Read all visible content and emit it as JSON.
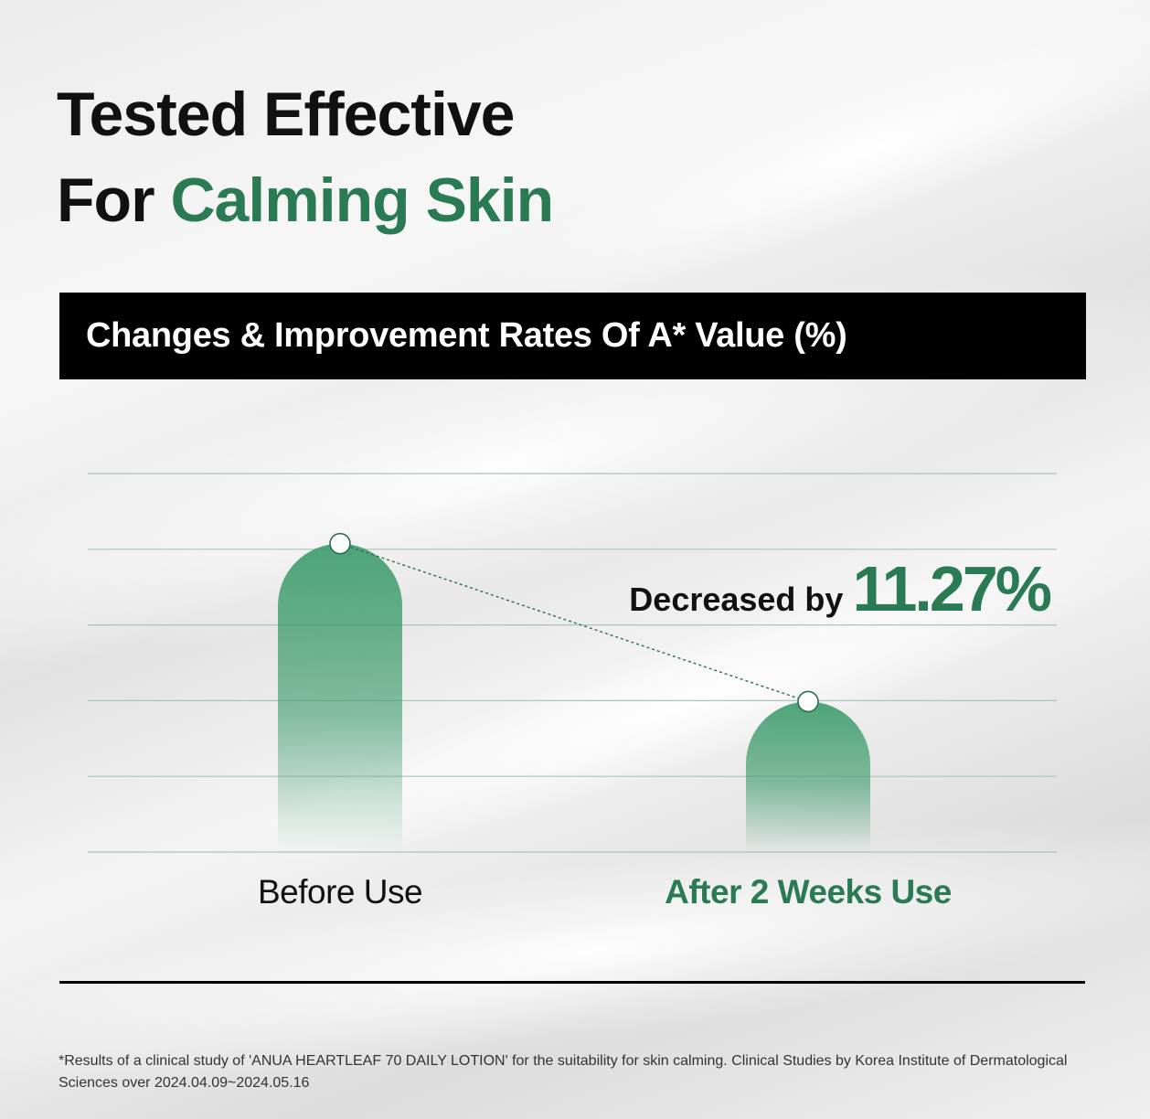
{
  "title": {
    "line1": "Tested Effective",
    "line2_prefix": "For ",
    "line2_accent": "Calming Skin"
  },
  "chart_data": {
    "type": "bar",
    "title": "Changes & Improvement Rates Of A* Value (%)",
    "categories": [
      "Before Use",
      "After 2 Weeks Use"
    ],
    "values": [
      100,
      88.73
    ],
    "ylim": [
      78,
      105
    ],
    "grid": true,
    "annotation": {
      "label": "Decreased by",
      "value": "11.27%"
    },
    "colors": {
      "accent": "#2a7a54",
      "bar": "#3a9a6c",
      "text": "#111111"
    }
  },
  "footnote": "*Results of a clinical study of 'ANUA HEARTLEAF 70 DAILY LOTION' for the suitability for skin calming. Clinical Studies by Korea Institute of Dermatological Sciences over 2024.04.09~2024.05.16"
}
